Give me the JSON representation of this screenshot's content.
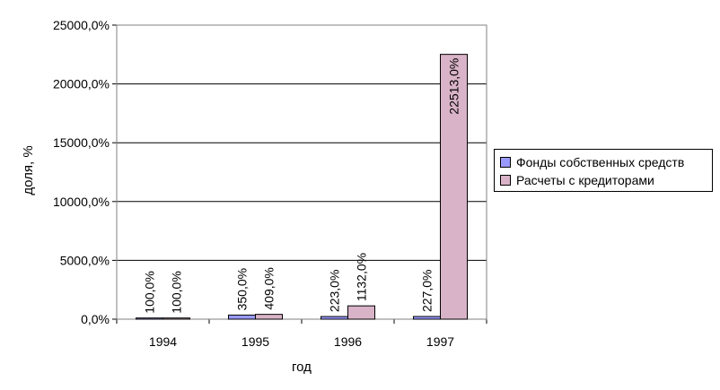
{
  "chart_data": {
    "type": "bar",
    "categories": [
      "1994",
      "1995",
      "1996",
      "1997"
    ],
    "series": [
      {
        "name": "Фонды собственных средств",
        "values": [
          100,
          350,
          223,
          227
        ],
        "labels": [
          "100,0%",
          "350,0%",
          "223,0%",
          "227,0%"
        ],
        "color": "#9999FF"
      },
      {
        "name": "Расчеты с кредиторами",
        "values": [
          100,
          409,
          1132,
          22513
        ],
        "labels": [
          "100,0%",
          "409,0%",
          "1132,0%",
          "22513,0%"
        ],
        "color": "#D9B3C7"
      }
    ],
    "xlabel": "год",
    "ylabel": "доля, %",
    "ylim": [
      0,
      25000
    ],
    "yticks": [
      0,
      5000,
      10000,
      15000,
      20000,
      25000
    ],
    "ytick_labels": [
      "0,0%",
      "5000,0%",
      "10000,0%",
      "15000,0%",
      "20000,0%",
      "25000,0%"
    ],
    "grid": true,
    "legend_position": "right"
  }
}
